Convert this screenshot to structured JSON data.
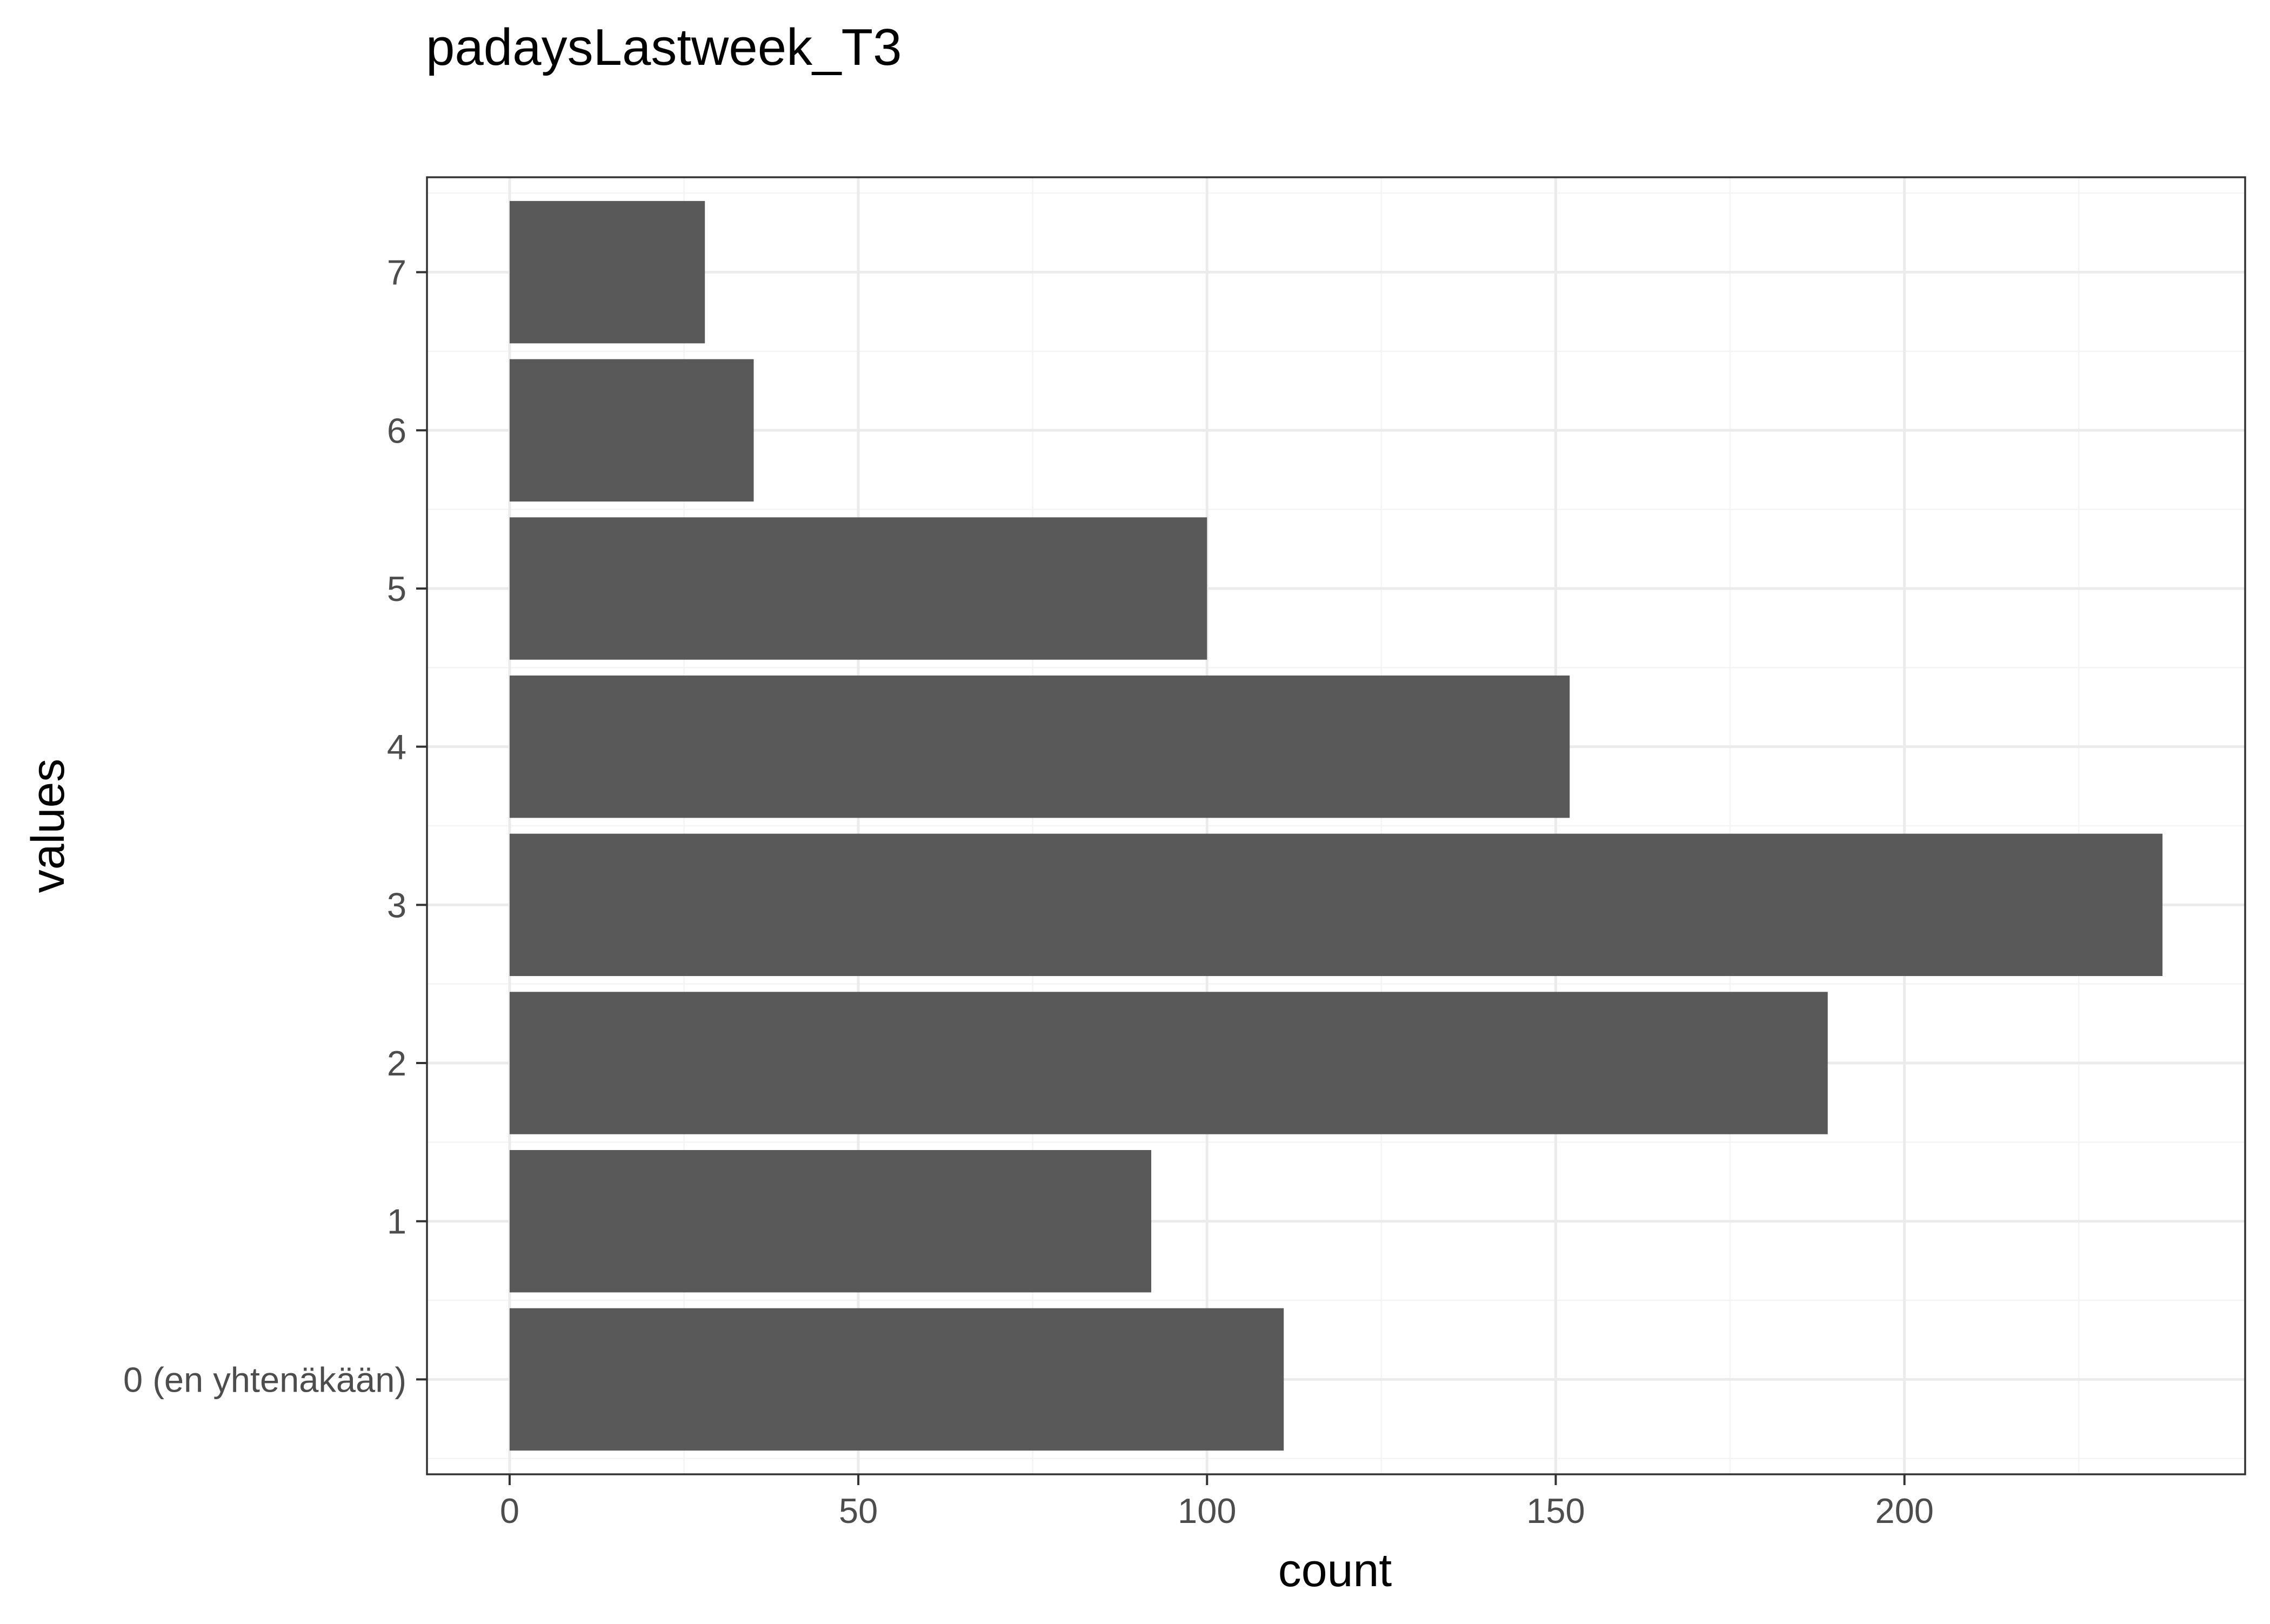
{
  "chart_data": {
    "type": "bar",
    "orientation": "horizontal",
    "title": "padaysLastweek_T3",
    "xlabel": "count",
    "ylabel": "values",
    "categories": [
      "0 (en yhtenäkään)",
      "1",
      "2",
      "3",
      "4",
      "5",
      "6",
      "7"
    ],
    "values": [
      111,
      92,
      189,
      237,
      152,
      100,
      35,
      28
    ],
    "xlim": [
      -11.85,
      248.85
    ],
    "x_ticks": [
      0,
      50,
      100,
      150,
      200
    ],
    "x_tick_labels": [
      "0",
      "50",
      "100",
      "150",
      "200"
    ],
    "grid": true,
    "legend": "none",
    "colors": {
      "bar": "#595959",
      "panel_border": "#333333",
      "grid_major": "#ebebeb",
      "grid_minor": "#f4f4f4",
      "tick_label": "#4d4d4d"
    }
  }
}
